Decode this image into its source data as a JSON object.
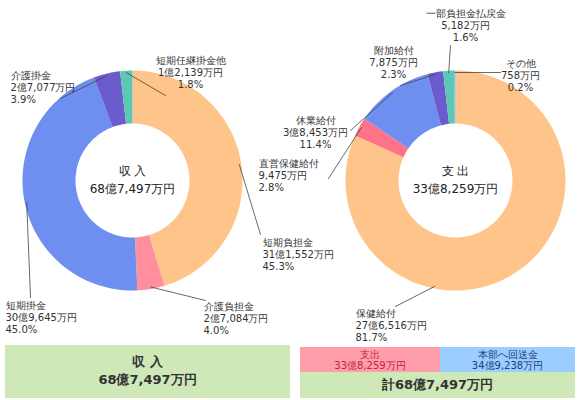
{
  "chart_data": [
    {
      "type": "pie",
      "title": "収 入",
      "total_label": "68億7,497万円",
      "categories": [
        "短期負担金",
        "介護負担金",
        "短期掛金",
        "介護掛金",
        "短期任継掛金他"
      ],
      "values": [
        45.3,
        4.0,
        45.0,
        3.9,
        1.8
      ],
      "value_labels": [
        "45.3%",
        "4.0%",
        "45.0%",
        "3.9%",
        "1.8%"
      ],
      "amounts": [
        "31億1,552万円",
        "2億7,084万円",
        "30億9,645万円",
        "2億7,077万円",
        "1億2,139万円"
      ],
      "colors": [
        "#ffc48a",
        "#ff8f9c",
        "#6f8ff0",
        "#6a5ccc",
        "#5cc8b4"
      ],
      "data_labels": true
    },
    {
      "type": "pie",
      "title": "支 出",
      "total_label": "33億8,259万円",
      "categories": [
        "保健給付",
        "直営保健給付",
        "休業給付",
        "附加給付",
        "一部負担金払戻金",
        "その他"
      ],
      "values": [
        81.7,
        2.8,
        11.4,
        2.3,
        1.6,
        0.2
      ],
      "value_labels": [
        "81.7%",
        "2.8%",
        "11.4%",
        "2.3%",
        "1.6%",
        "0.2%"
      ],
      "amounts": [
        "27億6,516万円",
        "9,475万円",
        "3億8,453万円",
        "7,875万円",
        "5,182万円",
        "758万円"
      ],
      "colors": [
        "#ffc48a",
        "#ff7388",
        "#6f8ff0",
        "#6a5ccc",
        "#5cc8b4",
        "#78b8e8"
      ],
      "data_labels": true
    }
  ],
  "summary": {
    "income": {
      "title": "収 入",
      "total": "68億7,497万円",
      "color": "#cfe8b8"
    },
    "breakdown": [
      {
        "label": "支出",
        "amount": "33億8,259万円",
        "color": "#ff9eaa"
      },
      {
        "label": "本部へ回送金",
        "amount": "34億9,238万円",
        "color": "#9ccdff"
      }
    ],
    "total": {
      "label": "計68億7,497万円",
      "color": "#cfe8b8"
    }
  }
}
